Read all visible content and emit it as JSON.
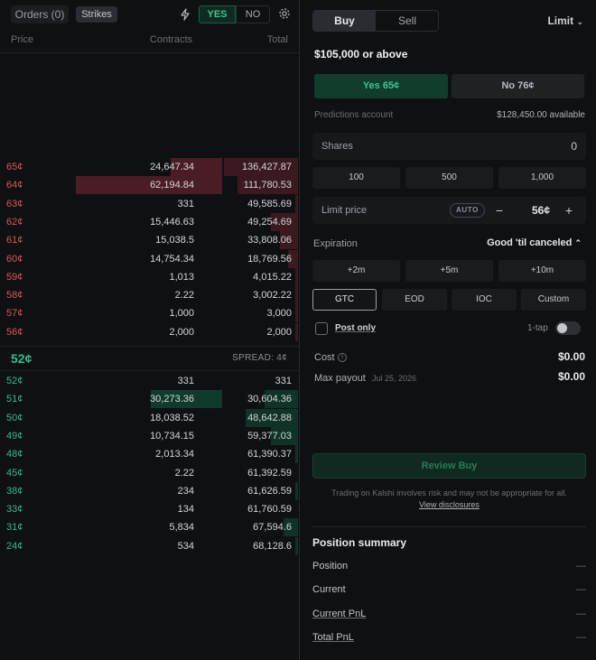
{
  "header": {
    "orders_label": "Orders (0)",
    "strikes_label": "Strikes",
    "yes_label": "YES",
    "no_label": "NO",
    "icons": [
      "lightning-icon",
      "gear-icon"
    ]
  },
  "orderbook": {
    "columns": {
      "price": "Price",
      "contracts": "Contracts",
      "total": "Total"
    },
    "asks": [
      {
        "price": "65¢",
        "contracts": "24,647.34",
        "total": "136,427.87",
        "contracts_fill": 0.35,
        "total_fill": 1.0
      },
      {
        "price": "64¢",
        "contracts": "62,194.84",
        "total": "111,780.53",
        "contracts_fill": 1.0,
        "total_fill": 0.82
      },
      {
        "price": "63¢",
        "contracts": "331",
        "total": "49,585.69",
        "contracts_fill": 0.0,
        "total_fill": 0.02
      },
      {
        "price": "62¢",
        "contracts": "15,446.63",
        "total": "49,254.69",
        "contracts_fill": 0.0,
        "total_fill": 0.36
      },
      {
        "price": "61¢",
        "contracts": "15,038.5",
        "total": "33,808.06",
        "contracts_fill": 0.0,
        "total_fill": 0.25
      },
      {
        "price": "60¢",
        "contracts": "14,754.34",
        "total": "18,769.56",
        "contracts_fill": 0.0,
        "total_fill": 0.14
      },
      {
        "price": "59¢",
        "contracts": "1,013",
        "total": "4,015.22",
        "contracts_fill": 0.0,
        "total_fill": 0.03
      },
      {
        "price": "58¢",
        "contracts": "2.22",
        "total": "3,002.22",
        "contracts_fill": 0.0,
        "total_fill": 0.02
      },
      {
        "price": "57¢",
        "contracts": "1,000",
        "total": "3,000",
        "contracts_fill": 0.0,
        "total_fill": 0.02
      },
      {
        "price": "56¢",
        "contracts": "2,000",
        "total": "2,000",
        "contracts_fill": 0.0,
        "total_fill": 0.02
      }
    ],
    "mid_price": "52¢",
    "spread": "SPREAD: 4¢",
    "bids": [
      {
        "price": "52¢",
        "contracts": "331",
        "total": "331",
        "contracts_fill": 0.0,
        "total_fill": 0.0
      },
      {
        "price": "51¢",
        "contracts": "30,273.36",
        "total": "30,604.36",
        "contracts_fill": 0.49,
        "total_fill": 0.45
      },
      {
        "price": "50¢",
        "contracts": "18,038.52",
        "total": "48,642.88",
        "contracts_fill": 0.0,
        "total_fill": 0.71
      },
      {
        "price": "49¢",
        "contracts": "10,734.15",
        "total": "59,377.03",
        "contracts_fill": 0.0,
        "total_fill": 0.36
      },
      {
        "price": "48¢",
        "contracts": "2,013.34",
        "total": "61,390.37",
        "contracts_fill": 0.0,
        "total_fill": 0.04
      },
      {
        "price": "45¢",
        "contracts": "2.22",
        "total": "61,392.59",
        "contracts_fill": 0.0,
        "total_fill": 0.0
      },
      {
        "price": "38¢",
        "contracts": "234",
        "total": "61,626.59",
        "contracts_fill": 0.0,
        "total_fill": 0.01
      },
      {
        "price": "33¢",
        "contracts": "134",
        "total": "61,760.59",
        "contracts_fill": 0.0,
        "total_fill": 0.0
      },
      {
        "price": "31¢",
        "contracts": "5,834",
        "total": "67,594.6",
        "contracts_fill": 0.0,
        "total_fill": 0.2
      },
      {
        "price": "24¢",
        "contracts": "534",
        "total": "68,128.6",
        "contracts_fill": 0.0,
        "total_fill": 0.02
      }
    ]
  },
  "ticket": {
    "buy_label": "Buy",
    "sell_label": "Sell",
    "order_type": "Limit",
    "market_title": "$105,000 or above",
    "yes_outcome": "Yes 65¢",
    "no_outcome": "No 76¢",
    "account_label": "Predictions account",
    "account_balance": "$128,450.00 available",
    "shares_label": "Shares",
    "shares_value": "0",
    "quick_shares": [
      "100",
      "500",
      "1,000"
    ],
    "limit_label": "Limit price",
    "auto_label": "AUTO",
    "minus": "−",
    "limit_value": "56¢",
    "plus": "+",
    "expiration_label": "Expiration",
    "expiration_value": "Good 'til canceled",
    "time_buttons": [
      "+2m",
      "+5m",
      "+10m"
    ],
    "tif_buttons": [
      "GTC",
      "EOD",
      "IOC",
      "Custom"
    ],
    "post_only": "Post only",
    "one_tap": "1-tap",
    "cost_label": "Cost",
    "cost_value": "$0.00",
    "payout_label": "Max payout",
    "payout_date": "Jul 25, 2026",
    "payout_value": "$0.00",
    "review_button": "Review Buy",
    "disclaimer": "Trading on Kalshi involves risk and may not be appropriate for all.",
    "disclosures_link": "View disclosures"
  },
  "position": {
    "title": "Position summary",
    "rows": [
      {
        "label": "Position",
        "value": "—"
      },
      {
        "label": "Current",
        "value": "—"
      },
      {
        "label": "Current PnL",
        "value": "—"
      },
      {
        "label": "Total PnL",
        "value": "—"
      }
    ]
  },
  "colors": {
    "ask": "#d9555f",
    "bid": "#2fbd8a",
    "background": "#0f1012"
  }
}
